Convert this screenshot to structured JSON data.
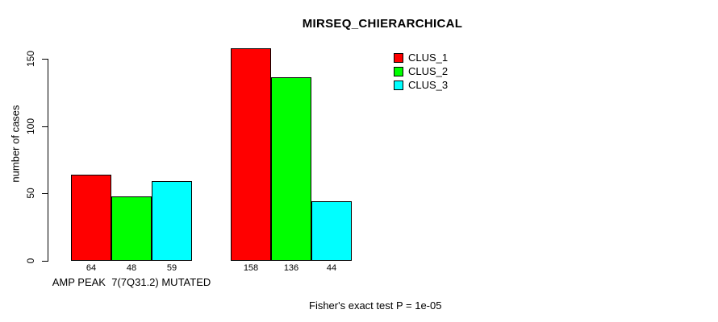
{
  "chart_data": {
    "type": "bar",
    "title": "MIRSEQ_CHIERARCHICAL",
    "ylabel": "number of cases",
    "xlabel": "",
    "group_label": "AMP PEAK  7(7Q31.2) MUTATED",
    "categories": [
      "AMP PEAK  7(7Q31.2) MUTATED",
      ""
    ],
    "series": [
      {
        "name": "CLUS_1",
        "color": "#ff0000",
        "values": [
          64,
          158
        ]
      },
      {
        "name": "CLUS_2",
        "color": "#00ff00",
        "values": [
          48,
          136
        ]
      },
      {
        "name": "CLUS_3",
        "color": "#00ffff",
        "values": [
          59,
          44
        ]
      }
    ],
    "yticks": [
      0,
      50,
      100,
      150
    ],
    "ylim": [
      0,
      158
    ],
    "grid": false,
    "legend_position": "top-right",
    "bar_value_labels": true,
    "footnote": "Fisher's exact test P = 1e-05"
  }
}
